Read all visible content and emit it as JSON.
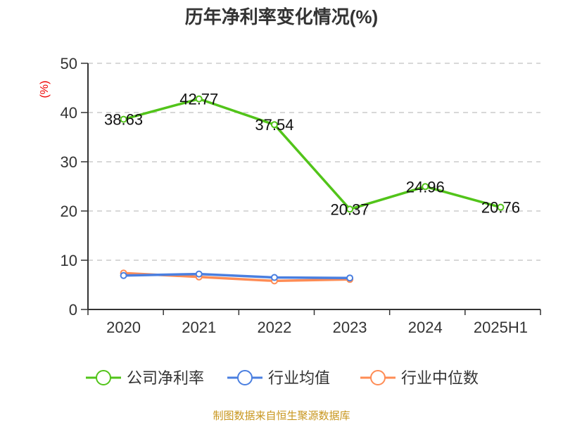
{
  "chart_data": {
    "type": "line",
    "title": "历年净利率变化情况(%)",
    "ylabel": "(%)",
    "xlabel": "",
    "ylim": [
      0,
      50
    ],
    "yticks": [
      0,
      10,
      20,
      30,
      40,
      50
    ],
    "grid": true,
    "categories": [
      "2020",
      "2021",
      "2022",
      "2023",
      "2024",
      "2025H1"
    ],
    "series": [
      {
        "name": "公司净利率",
        "color": "#52c41a",
        "values": [
          38.63,
          42.77,
          37.54,
          20.37,
          24.96,
          20.76
        ],
        "labels": [
          "38.63",
          "42.77",
          "37.54",
          "20.37",
          "24.96",
          "20.76"
        ]
      },
      {
        "name": "行业均值",
        "color": "#4a7fe0",
        "values": [
          6.9,
          7.2,
          6.5,
          6.4,
          null,
          null
        ]
      },
      {
        "name": "行业中位数",
        "color": "#ff8c55",
        "values": [
          7.4,
          6.6,
          5.8,
          6.1,
          null,
          null
        ]
      }
    ],
    "legend_position": "bottom",
    "source": "制图数据来自恒生聚源数据库"
  }
}
